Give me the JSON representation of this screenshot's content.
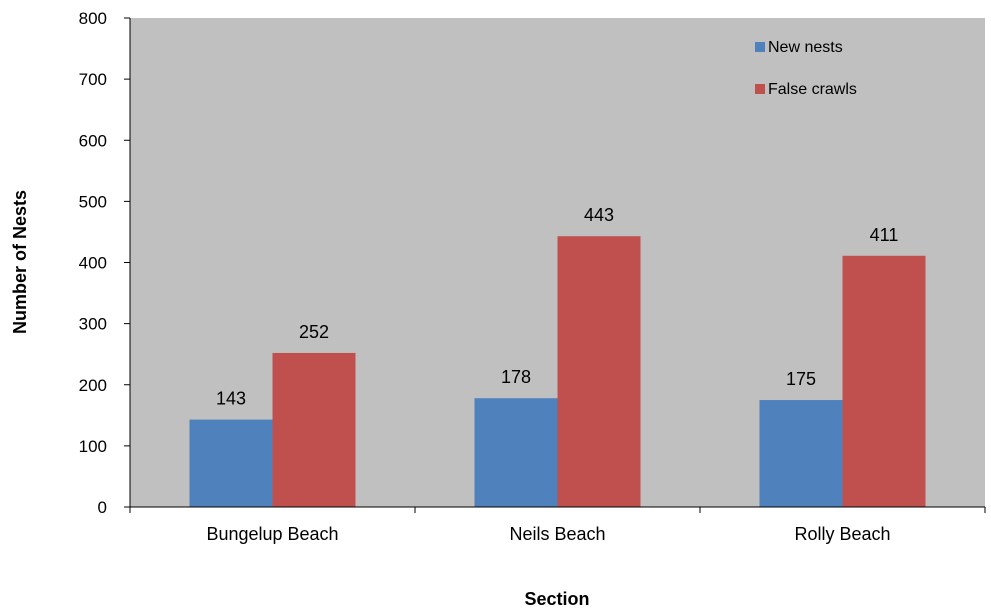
{
  "chart_data": {
    "type": "bar",
    "title": "",
    "xlabel": "Section",
    "ylabel": "Number of Nests",
    "categories": [
      "Bungelup Beach",
      "Neils Beach",
      "Rolly Beach"
    ],
    "series": [
      {
        "name": "New nests",
        "values": [
          143,
          178,
          175
        ],
        "color": "#4f81bd"
      },
      {
        "name": "False crawls",
        "values": [
          252,
          443,
          411
        ],
        "color": "#c0504d"
      }
    ],
    "ylim": [
      0,
      800
    ],
    "yticks": [
      0,
      100,
      200,
      300,
      400,
      500,
      600,
      700,
      800
    ],
    "grid": false,
    "legend_position": "top-right",
    "plot_background": "#c0c0c0"
  }
}
